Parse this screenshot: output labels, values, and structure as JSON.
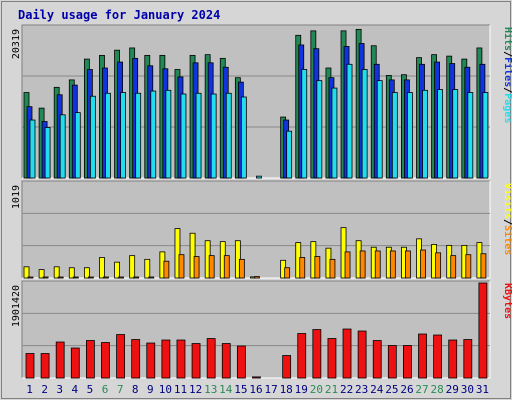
{
  "chart_data": [
    {
      "type": "bar",
      "title": "Daily usage for January 2024",
      "panel": "top",
      "y_max_label": "20319",
      "legend_right": [
        "Pages",
        "/",
        "Files",
        "/",
        "Hits"
      ],
      "categories": [
        "1",
        "2",
        "3",
        "4",
        "5",
        "6",
        "7",
        "8",
        "9",
        "10",
        "11",
        "12",
        "13",
        "14",
        "15",
        "16",
        "17",
        "18",
        "19",
        "20",
        "21",
        "22",
        "23",
        "24",
        "25",
        "26",
        "27",
        "28",
        "29",
        "30",
        "31"
      ],
      "ylim": [
        0,
        20319
      ],
      "series": [
        {
          "name": "Hits",
          "values": [
            11500,
            9400,
            12200,
            13200,
            16000,
            16500,
            17200,
            17500,
            16500,
            16500,
            14600,
            16500,
            16600,
            16100,
            13500,
            0,
            0,
            8200,
            19200,
            19800,
            14800,
            19800,
            20000,
            17800,
            13800,
            13900,
            16200,
            16600,
            16400,
            16000,
            17500
          ]
        },
        {
          "name": "Files",
          "values": [
            9600,
            7600,
            11200,
            12500,
            14600,
            14800,
            15600,
            16100,
            15100,
            14700,
            13600,
            15500,
            15500,
            14900,
            12900,
            0,
            0,
            7800,
            17900,
            17400,
            13500,
            17700,
            18100,
            15300,
            13200,
            13200,
            15300,
            15600,
            15400,
            14900,
            15300
          ]
        },
        {
          "name": "Pages",
          "values": [
            7800,
            6800,
            8500,
            8800,
            11000,
            11400,
            11500,
            11400,
            11700,
            11800,
            11300,
            11400,
            11300,
            11400,
            10900,
            250,
            0,
            6300,
            14600,
            13100,
            12100,
            15300,
            14600,
            13100,
            11500,
            11500,
            11800,
            11900,
            11900,
            11500,
            11500
          ]
        }
      ],
      "colors": {
        "Hits": "#228855",
        "Files": "#1133dd",
        "Pages": "#22ddee"
      }
    },
    {
      "type": "bar",
      "panel": "middle",
      "y_max_label": "1019",
      "legend_right": [
        "Sites",
        "/",
        "Visits"
      ],
      "categories": [
        "1",
        "2",
        "3",
        "4",
        "5",
        "6",
        "7",
        "8",
        "9",
        "10",
        "11",
        "12",
        "13",
        "14",
        "15",
        "16",
        "17",
        "18",
        "19",
        "20",
        "21",
        "22",
        "23",
        "24",
        "25",
        "26",
        "27",
        "28",
        "29",
        "30",
        "31"
      ],
      "ylim": [
        0,
        1019
      ],
      "series": [
        {
          "name": "Visits",
          "values": [
            120,
            90,
            120,
            110,
            110,
            220,
            170,
            240,
            200,
            280,
            530,
            480,
            400,
            390,
            400,
            12,
            0,
            190,
            380,
            390,
            320,
            540,
            400,
            330,
            330,
            330,
            420,
            360,
            350,
            350,
            380
          ]
        },
        {
          "name": "Sites",
          "values": [
            3,
            3,
            3,
            3,
            3,
            4,
            3,
            4,
            4,
            180,
            250,
            230,
            240,
            240,
            200,
            15,
            0,
            110,
            220,
            230,
            200,
            280,
            290,
            290,
            290,
            290,
            300,
            270,
            240,
            250,
            260
          ]
        }
      ],
      "colors": {
        "Visits": "#ffff00",
        "Sites": "#ff8800"
      }
    },
    {
      "type": "bar",
      "panel": "bottom",
      "y_max_label": "1901420",
      "legend_right": [
        "KBytes"
      ],
      "categories": [
        "1",
        "2",
        "3",
        "4",
        "5",
        "6",
        "7",
        "8",
        "9",
        "10",
        "11",
        "12",
        "13",
        "14",
        "15",
        "16",
        "17",
        "18",
        "19",
        "20",
        "21",
        "22",
        "23",
        "24",
        "25",
        "26",
        "27",
        "28",
        "29",
        "30",
        "31"
      ],
      "ylim": [
        0,
        1901420
      ],
      "series": [
        {
          "name": "KBytes",
          "values": [
            490000,
            490000,
            720000,
            600000,
            750000,
            710000,
            870000,
            770000,
            700000,
            760000,
            760000,
            690000,
            790000,
            690000,
            640000,
            22000,
            0,
            450000,
            890000,
            970000,
            790000,
            980000,
            940000,
            750000,
            650000,
            650000,
            880000,
            860000,
            760000,
            770000,
            1901420
          ]
        }
      ],
      "colors": {
        "KBytes": "#ee1111"
      }
    }
  ],
  "x_labels": {
    "days": [
      "1",
      "2",
      "3",
      "4",
      "5",
      "6",
      "7",
      "8",
      "9",
      "10",
      "11",
      "12",
      "13",
      "14",
      "15",
      "16",
      "17",
      "18",
      "19",
      "20",
      "21",
      "22",
      "23",
      "24",
      "25",
      "26",
      "27",
      "28",
      "29",
      "30",
      "31"
    ],
    "weekend_days": [
      "6",
      "7",
      "13",
      "14",
      "20",
      "21",
      "27",
      "28"
    ],
    "weekday_color": "#000080",
    "weekend_color": "#2b8a57"
  },
  "colors": {
    "title": "#0000aa",
    "panel_bg": "#c0c0c0",
    "frame_bg": "#d0d0d0"
  }
}
